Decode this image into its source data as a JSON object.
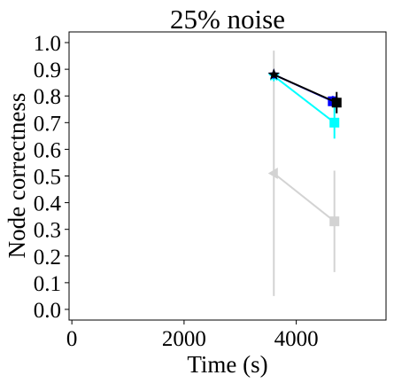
{
  "chart_data": {
    "type": "scatter",
    "title": "25% noise",
    "xlabel": "Time (s)",
    "ylabel": "Node correctness",
    "xlim": [
      -50,
      5600
    ],
    "ylim": [
      -0.04,
      1.04
    ],
    "xticks": [
      0,
      2000,
      4000
    ],
    "yticks": [
      0.0,
      0.1,
      0.2,
      0.3,
      0.4,
      0.5,
      0.6,
      0.7,
      0.8,
      0.9,
      1.0
    ],
    "xtick_labels": [
      "0",
      "2000",
      "4000"
    ],
    "ytick_labels": [
      "0.0",
      "0.1",
      "0.2",
      "0.3",
      "0.4",
      "0.5",
      "0.6",
      "0.7",
      "0.8",
      "0.9",
      "1.0"
    ],
    "grid": false,
    "series": [
      {
        "color": "#d3d3d3",
        "points": [
          {
            "x": 3600,
            "y": 0.51,
            "err": 0.46,
            "marker": "triangle"
          },
          {
            "x": 4680,
            "y": 0.33,
            "err": 0.19,
            "marker": "square"
          }
        ]
      },
      {
        "color": "#00ffff",
        "points": [
          {
            "x": 3600,
            "y": 0.875,
            "err": 0.02,
            "marker": "star"
          },
          {
            "x": 4680,
            "y": 0.7,
            "err": 0.06,
            "marker": "square"
          }
        ]
      },
      {
        "color": "#0000ff",
        "points": [
          {
            "x": 3600,
            "y": 0.88,
            "err": 0.015,
            "marker": "star"
          },
          {
            "x": 4650,
            "y": 0.78,
            "err": 0.02,
            "marker": "square"
          }
        ]
      },
      {
        "color": "#000000",
        "points": [
          {
            "x": 3600,
            "y": 0.88,
            "err": 0.01,
            "marker": "star"
          },
          {
            "x": 4720,
            "y": 0.775,
            "err": 0.04,
            "marker": "square"
          }
        ]
      }
    ]
  }
}
